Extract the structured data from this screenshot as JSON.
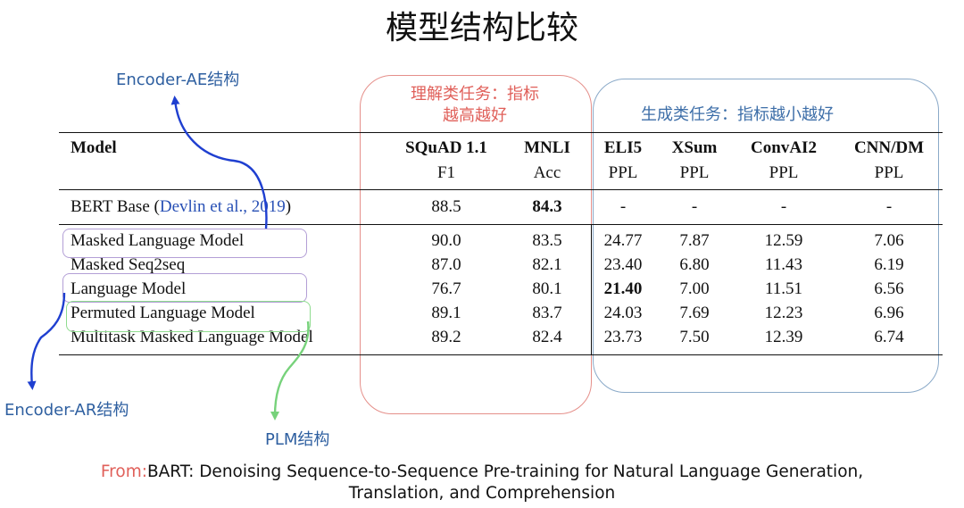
{
  "title": "模型结构比较",
  "annotations": {
    "encoder_ae": "Encoder-AE结构",
    "encoder_ar": "Encoder-AR结构",
    "plm": "PLM结构",
    "understanding_tasks": [
      "理解类任务：指标",
      "越高越好"
    ],
    "generation_tasks": "生成类任务：指标越小越好"
  },
  "table": {
    "model_header": "Model",
    "columns": [
      {
        "name": "SQuAD 1.1",
        "metric": "F1"
      },
      {
        "name": "MNLI",
        "metric": "Acc"
      },
      {
        "name": "ELI5",
        "metric": "PPL"
      },
      {
        "name": "XSum",
        "metric": "PPL"
      },
      {
        "name": "ConvAI2",
        "metric": "PPL"
      },
      {
        "name": "CNN/DM",
        "metric": "PPL"
      }
    ],
    "baseline": {
      "name": "BERT Base (",
      "citation": "Devlin et al., 2019",
      "name_close": ")",
      "values": [
        "88.5",
        "84.3",
        "-",
        "-",
        "-",
        "-"
      ]
    },
    "rows": [
      {
        "name": "Masked Language Model",
        "values": [
          "90.0",
          "83.5",
          "24.77",
          "7.87",
          "12.59",
          "7.06"
        ]
      },
      {
        "name": "Masked Seq2seq",
        "values": [
          "87.0",
          "82.1",
          "23.40",
          "6.80",
          "11.43",
          "6.19"
        ]
      },
      {
        "name": "Language Model",
        "values": [
          "76.7",
          "80.1",
          "21.40",
          "7.00",
          "11.51",
          "6.56"
        ]
      },
      {
        "name": "Permuted Language Model",
        "values": [
          "89.1",
          "83.7",
          "24.03",
          "7.69",
          "12.23",
          "6.96"
        ]
      },
      {
        "name": "Multitask Masked Language Model",
        "values": [
          "89.2",
          "82.4",
          "23.73",
          "7.50",
          "12.39",
          "6.74"
        ]
      }
    ]
  },
  "footer": {
    "from_label": "From:",
    "line1": "BART: Denoising Sequence-to-Sequence Pre-training for Natural Language Generation,",
    "line2": "Translation, and Comprehension"
  },
  "colors": {
    "annotation_blue": "#2e5fa0",
    "understanding_red": "#e0605a",
    "generation_blue": "#7fa3c6",
    "arrow_blue": "#1f3fd0",
    "arrow_green": "#77d27b",
    "box_purple": "#b39fd6",
    "box_green": "#8fdc8f"
  }
}
